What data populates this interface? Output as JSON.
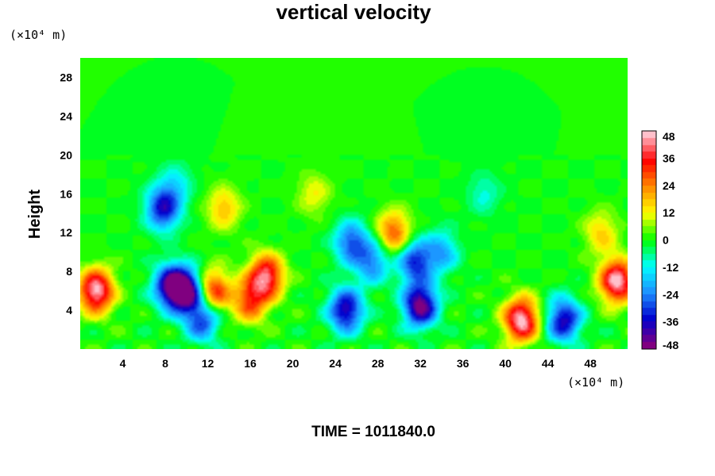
{
  "chart_data": {
    "type": "heatmap",
    "title": "vertical velocity",
    "ylabel": "Height",
    "x_unit_label": "(×10⁴ m)",
    "y_unit_label": "(×10⁴ m)",
    "xlim": [
      0,
      51.5
    ],
    "ylim": [
      0,
      30
    ],
    "x_ticks": [
      4,
      8,
      12,
      16,
      20,
      24,
      28,
      32,
      36,
      40,
      44,
      48
    ],
    "y_ticks": [
      4,
      8,
      12,
      16,
      20,
      24,
      28
    ],
    "colorbar": {
      "range": [
        -48,
        48
      ],
      "ticks": [
        48,
        36,
        24,
        12,
        0,
        -12,
        -24,
        -36,
        -48
      ],
      "colormap": [
        "#800080",
        "#0000cd",
        "#1e90ff",
        "#00ffff",
        "#00ff00",
        "#ffff00",
        "#ff8c00",
        "#ff0000",
        "#ffc0cb"
      ]
    },
    "background_value": 0,
    "features": [
      {
        "x": 1.5,
        "y": 6,
        "value": 48
      },
      {
        "x": 8.5,
        "y": 6.5,
        "value": -40
      },
      {
        "x": 10,
        "y": 6,
        "value": -48
      },
      {
        "x": 7.8,
        "y": 14.5,
        "value": -36
      },
      {
        "x": 11.5,
        "y": 3,
        "value": -30
      },
      {
        "x": 13.5,
        "y": 14.5,
        "value": 18
      },
      {
        "x": 17.5,
        "y": 7.5,
        "value": 42
      },
      {
        "x": 16,
        "y": 5,
        "value": 30
      },
      {
        "x": 12.5,
        "y": 6,
        "value": 34
      },
      {
        "x": 25,
        "y": 4,
        "value": -40
      },
      {
        "x": 25.5,
        "y": 11,
        "value": -28
      },
      {
        "x": 27.5,
        "y": 9,
        "value": -24
      },
      {
        "x": 29.5,
        "y": 12,
        "value": 28
      },
      {
        "x": 32,
        "y": 4.5,
        "value": -48
      },
      {
        "x": 31.5,
        "y": 9,
        "value": -32
      },
      {
        "x": 34,
        "y": 10,
        "value": -20
      },
      {
        "x": 41.5,
        "y": 3,
        "value": 48
      },
      {
        "x": 45.5,
        "y": 3,
        "value": -38
      },
      {
        "x": 50.5,
        "y": 7,
        "value": 48
      },
      {
        "x": 49,
        "y": 12,
        "value": 16
      },
      {
        "x": 9,
        "y": 17,
        "value": -12
      },
      {
        "x": 22,
        "y": 16,
        "value": 12
      },
      {
        "x": 38,
        "y": 16,
        "value": -10
      }
    ]
  },
  "footer": "TIME = 1011840.0"
}
